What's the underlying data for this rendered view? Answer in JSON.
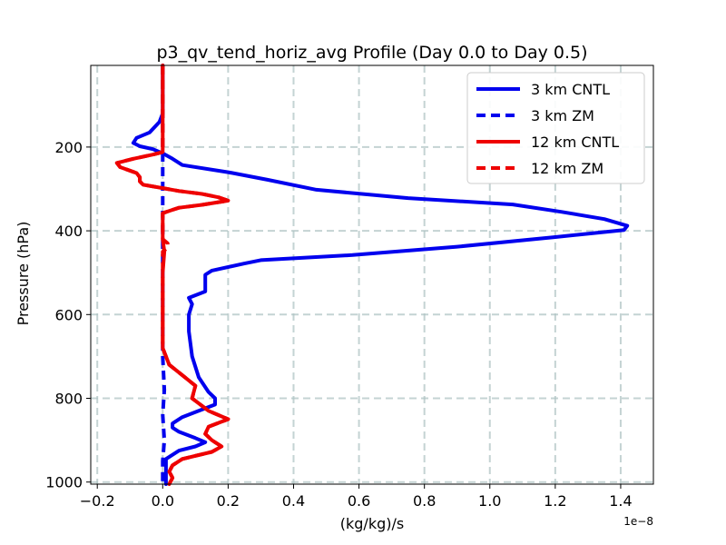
{
  "chart_data": {
    "type": "line",
    "title": "p3_qv_tend_horiz_avg Profile (Day 0.0 to Day 0.5)",
    "xlabel": "(kg/kg)/s",
    "ylabel": "Pressure (hPa)",
    "x_offset_label": "1e−8",
    "xlim": [
      -0.22,
      1.5
    ],
    "ylim": [
      1005,
      5
    ],
    "y_inverted": true,
    "grid": true,
    "xticks": [
      -0.2,
      0.0,
      0.2,
      0.4,
      0.6,
      0.8,
      1.0,
      1.2,
      1.4
    ],
    "xtick_labels": [
      "−0.2",
      "0.0",
      "0.2",
      "0.4",
      "0.6",
      "0.8",
      "1.0",
      "1.2",
      "1.4"
    ],
    "yticks": [
      200,
      400,
      600,
      800,
      1000
    ],
    "ytick_labels": [
      "200",
      "400",
      "600",
      "800",
      "1000"
    ],
    "legend_position": "top-right",
    "series": [
      {
        "name": "3 km CNTL",
        "color": "#0000ee",
        "style": "solid",
        "points": [
          [
            0.0,
            5
          ],
          [
            0.0,
            120
          ],
          [
            -0.01,
            140
          ],
          [
            -0.04,
            165
          ],
          [
            -0.08,
            178
          ],
          [
            -0.09,
            190
          ],
          [
            -0.07,
            198
          ],
          [
            -0.03,
            205
          ],
          [
            0.0,
            215
          ],
          [
            0.03,
            228
          ],
          [
            0.06,
            243
          ],
          [
            0.2,
            260
          ],
          [
            0.32,
            278
          ],
          [
            0.47,
            302
          ],
          [
            0.75,
            322
          ],
          [
            1.07,
            337
          ],
          [
            1.22,
            355
          ],
          [
            1.35,
            372
          ],
          [
            1.42,
            388
          ],
          [
            1.41,
            398
          ],
          [
            1.2,
            415
          ],
          [
            0.9,
            438
          ],
          [
            0.58,
            458
          ],
          [
            0.3,
            470
          ],
          [
            0.25,
            478
          ],
          [
            0.15,
            495
          ],
          [
            0.13,
            505
          ],
          [
            0.13,
            545
          ],
          [
            0.08,
            560
          ],
          [
            0.09,
            575
          ],
          [
            0.08,
            600
          ],
          [
            0.08,
            640
          ],
          [
            0.09,
            700
          ],
          [
            0.11,
            750
          ],
          [
            0.14,
            785
          ],
          [
            0.16,
            800
          ],
          [
            0.16,
            815
          ],
          [
            0.11,
            830
          ],
          [
            0.06,
            845
          ],
          [
            0.03,
            860
          ],
          [
            0.03,
            870
          ],
          [
            0.05,
            880
          ],
          [
            0.1,
            895
          ],
          [
            0.13,
            905
          ],
          [
            0.1,
            915
          ],
          [
            0.05,
            925
          ],
          [
            0.03,
            935
          ],
          [
            0.01,
            945
          ],
          [
            0.01,
            960
          ],
          [
            0.01,
            1005
          ]
        ]
      },
      {
        "name": "3 km ZM",
        "color": "#0000ee",
        "style": "dashed",
        "points": [
          [
            0.0,
            5
          ],
          [
            0.0,
            600
          ],
          [
            0.0,
            700
          ],
          [
            0.005,
            780
          ],
          [
            0.0,
            840
          ],
          [
            0.005,
            900
          ],
          [
            0.0,
            950
          ],
          [
            0.0,
            1005
          ]
        ]
      },
      {
        "name": "12 km CNTL",
        "color": "#ee0000",
        "style": "solid",
        "points": [
          [
            0.0,
            5
          ],
          [
            0.0,
            212
          ],
          [
            -0.03,
            218
          ],
          [
            -0.09,
            228
          ],
          [
            -0.14,
            238
          ],
          [
            -0.13,
            248
          ],
          [
            -0.08,
            262
          ],
          [
            -0.07,
            272
          ],
          [
            -0.07,
            282
          ],
          [
            -0.06,
            290
          ],
          [
            0.0,
            298
          ],
          [
            0.05,
            305
          ],
          [
            0.12,
            312
          ],
          [
            0.17,
            320
          ],
          [
            0.2,
            328
          ],
          [
            0.12,
            338
          ],
          [
            0.05,
            345
          ],
          [
            0.03,
            350
          ],
          [
            0.0,
            358
          ],
          [
            0.0,
            368
          ],
          [
            0.0,
            420
          ],
          [
            0.005,
            450
          ],
          [
            0.0,
            500
          ],
          [
            0.0,
            680
          ],
          [
            0.02,
            720
          ],
          [
            0.06,
            745
          ],
          [
            0.1,
            770
          ],
          [
            0.09,
            800
          ],
          [
            0.14,
            830
          ],
          [
            0.2,
            850
          ],
          [
            0.14,
            868
          ],
          [
            0.13,
            885
          ],
          [
            0.15,
            900
          ],
          [
            0.18,
            915
          ],
          [
            0.15,
            928
          ],
          [
            0.06,
            945
          ],
          [
            0.03,
            960
          ],
          [
            0.02,
            975
          ],
          [
            0.03,
            990
          ],
          [
            0.02,
            1005
          ]
        ]
      },
      {
        "name": "12 km ZM",
        "color": "#ee0000",
        "style": "dashed",
        "points": [
          [
            0.0,
            5
          ],
          [
            0.0,
            212
          ],
          [
            -0.03,
            218
          ],
          [
            -0.09,
            228
          ],
          [
            -0.14,
            238
          ],
          [
            -0.13,
            248
          ],
          [
            -0.08,
            262
          ],
          [
            -0.07,
            272
          ],
          [
            -0.07,
            282
          ],
          [
            -0.06,
            290
          ],
          [
            0.0,
            298
          ],
          [
            0.05,
            305
          ],
          [
            0.12,
            312
          ],
          [
            0.17,
            320
          ],
          [
            0.2,
            328
          ],
          [
            0.12,
            338
          ],
          [
            0.05,
            345
          ],
          [
            0.03,
            350
          ],
          [
            0.0,
            358
          ],
          [
            0.0,
            368
          ],
          [
            0.0,
            420
          ],
          [
            0.015,
            430
          ],
          [
            0.015,
            440
          ],
          [
            0.0,
            450
          ],
          [
            0.0,
            500
          ],
          [
            0.0,
            680
          ],
          [
            0.02,
            720
          ],
          [
            0.06,
            745
          ],
          [
            0.1,
            770
          ],
          [
            0.09,
            800
          ],
          [
            0.14,
            830
          ],
          [
            0.2,
            850
          ],
          [
            0.14,
            868
          ],
          [
            0.13,
            885
          ],
          [
            0.15,
            900
          ],
          [
            0.18,
            915
          ],
          [
            0.15,
            928
          ],
          [
            0.06,
            945
          ],
          [
            0.03,
            960
          ],
          [
            0.02,
            975
          ],
          [
            0.03,
            990
          ],
          [
            0.02,
            1005
          ]
        ]
      }
    ]
  }
}
